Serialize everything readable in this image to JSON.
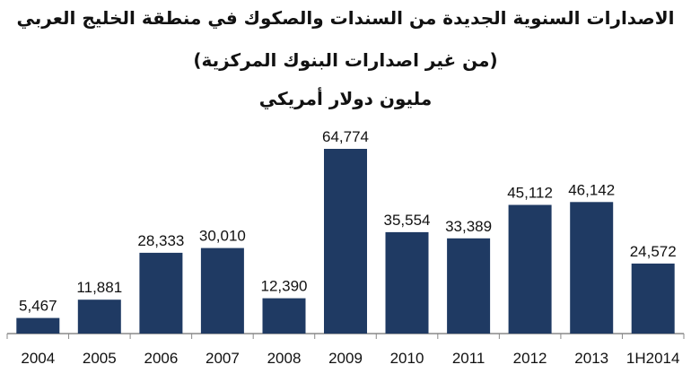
{
  "title_line1": "الاصدارات السنوية الجديدة من السندات والصكوك في منطقة الخليج العربي",
  "title_line2": "(من غير اصدارات البنوك المركزية)",
  "title_line3": "مليون دولار أمريكي",
  "colors": {
    "bar": "#1f3a63",
    "axis": "#888888",
    "text": "#111111"
  },
  "chart_data": {
    "type": "bar",
    "categories": [
      "2004",
      "2005",
      "2006",
      "2007",
      "2008",
      "2009",
      "2010",
      "2011",
      "2012",
      "2013",
      "1H2014"
    ],
    "values": [
      5467,
      11881,
      28333,
      30010,
      12390,
      64774,
      35554,
      33389,
      45112,
      46142,
      24572
    ],
    "data_labels": [
      "5,467",
      "11,881",
      "28,333",
      "30,010",
      "12,390",
      "64,774",
      "35,554",
      "33,389",
      "45,112",
      "46,142",
      "24,572"
    ],
    "ylim": [
      0,
      70000
    ],
    "grid": false,
    "legend": "none"
  }
}
